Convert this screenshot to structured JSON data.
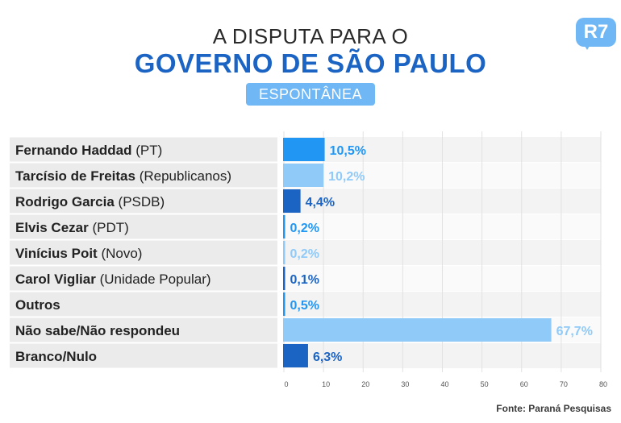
{
  "header": {
    "title_line1": "A DISPUTA PARA O",
    "title_line2": "GOVERNO DE SÃO PAULO",
    "badge": "ESPONTÂNEA",
    "logo": "R7"
  },
  "footer": {
    "source": "Fonte: Paraná Pesquisas"
  },
  "colors": {
    "dark": "#1b64c4",
    "mid": "#2196f3",
    "light": "#90caf9",
    "rowbg": "#ebebeb"
  },
  "chart_data": {
    "type": "bar",
    "orientation": "horizontal",
    "categories": [
      {
        "name": "Fernando Haddad",
        "party": "(PT)"
      },
      {
        "name": "Tarcísio de Freitas",
        "party": "(Republicanos)"
      },
      {
        "name": "Rodrigo Garcia",
        "party": "(PSDB)"
      },
      {
        "name": "Elvis Cezar",
        "party": "(PDT)"
      },
      {
        "name": "Vinícius Poit",
        "party": "(Novo)"
      },
      {
        "name": "Carol Vigliar",
        "party": "(Unidade Popular)"
      },
      {
        "name": "Outros",
        "party": ""
      },
      {
        "name": "Não sabe/Não respondeu",
        "party": ""
      },
      {
        "name": "Branco/Nulo",
        "party": ""
      }
    ],
    "values": [
      10.5,
      10.2,
      4.4,
      0.2,
      0.2,
      0.1,
      0.5,
      67.7,
      6.3
    ],
    "value_labels": [
      "10,5%",
      "10,2%",
      "4,4%",
      "0,2%",
      "0,2%",
      "0,1%",
      "0,5%",
      "67,7%",
      "6,3%"
    ],
    "bar_colors": [
      "#2196f3",
      "#90caf9",
      "#1b64c4",
      "#2196f3",
      "#90caf9",
      "#1b64c4",
      "#2196f3",
      "#90caf9",
      "#1b64c4"
    ],
    "label_colors": [
      "#2196f3",
      "#90caf9",
      "#1b64c4",
      "#2196f3",
      "#90caf9",
      "#1b64c4",
      "#2196f3",
      "#90caf9",
      "#1b64c4"
    ],
    "xlim": [
      0,
      80
    ],
    "xticks": [
      "0",
      "10",
      "20",
      "30",
      "40",
      "50",
      "60",
      "70",
      "80"
    ],
    "grid": true
  }
}
